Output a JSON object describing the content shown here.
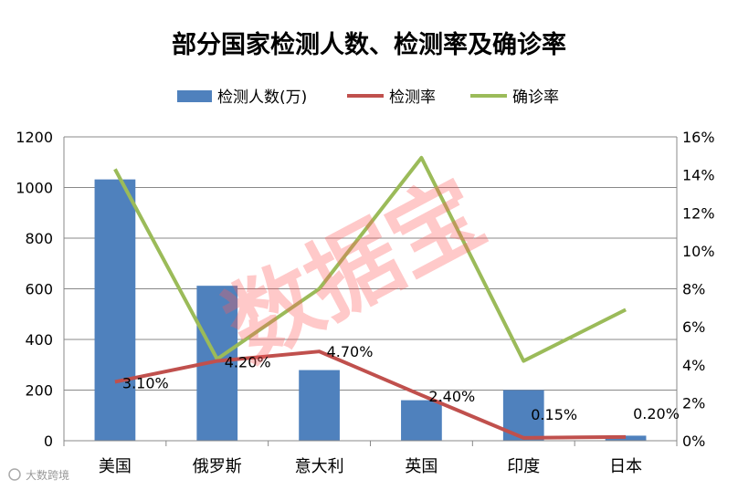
{
  "chart_data": {
    "type": "bar+line",
    "title": "部分国家检测人数、检测率及确诊率",
    "categories": [
      "美国",
      "俄罗斯",
      "意大利",
      "英国",
      "印度",
      "日本"
    ],
    "series": [
      {
        "name": "检测人数(万)",
        "type": "bar",
        "axis": "left",
        "values": [
          1032,
          612,
          279,
          160,
          200,
          20
        ]
      },
      {
        "name": "检测率",
        "type": "line",
        "axis": "right",
        "values": [
          3.1,
          4.2,
          4.7,
          2.4,
          0.15,
          0.2
        ],
        "labels": [
          "3.10%",
          "4.20%",
          "4.70%",
          "2.40%",
          "0.15%",
          "0.20%"
        ]
      },
      {
        "name": "确诊率",
        "type": "line",
        "axis": "right",
        "values": [
          14.3,
          4.3,
          8.0,
          14.9,
          4.2,
          6.9
        ]
      }
    ],
    "y_left": {
      "range": [
        0,
        1200
      ],
      "ticks": [
        "0",
        "200",
        "400",
        "600",
        "800",
        "1000",
        "1200"
      ]
    },
    "y_right": {
      "range": [
        0,
        16
      ],
      "ticks": [
        "0%",
        "2%",
        "4%",
        "6%",
        "8%",
        "10%",
        "12%",
        "14%",
        "16%"
      ]
    },
    "legend_position": "top",
    "grid": "horizontal",
    "colors": {
      "bar": "#4f81bd",
      "rate": "#c0504d",
      "confirm": "#9bbb59",
      "grid": "#888888",
      "watermark": "#ff5a5a"
    }
  },
  "watermark": "数据宝",
  "corner_logo": "大数跨境"
}
